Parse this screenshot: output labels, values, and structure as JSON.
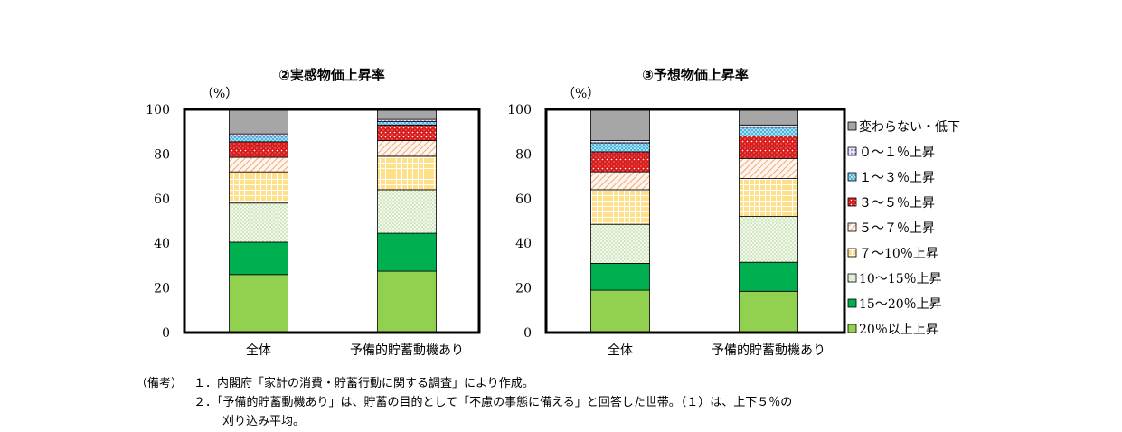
{
  "units_label": "（%）",
  "legend": [
    {
      "label": "変わらない・低下",
      "color": "#a6a6a6",
      "pattern": "solid"
    },
    {
      "label": "０～１％上昇",
      "color": "#9b8fd1",
      "pattern": "dots-purple"
    },
    {
      "label": "１～３％上昇",
      "color": "#8fd8f0",
      "pattern": "hatch-cyan"
    },
    {
      "label": "３～５％上昇",
      "color": "#d92020",
      "pattern": "dots-red"
    },
    {
      "label": "５～７％上昇",
      "color": "#f4a261",
      "pattern": "hatch-orange"
    },
    {
      "label": "７～10％上昇",
      "color": "#ffd966",
      "pattern": "grid-yellow"
    },
    {
      "label": "10～15％上昇",
      "color": "#d9ead3",
      "pattern": "dots-green"
    },
    {
      "label": "15～20％上昇",
      "color": "#00b050",
      "pattern": "solid"
    },
    {
      "label": "20％以上上昇",
      "color": "#92d050",
      "pattern": "solid"
    }
  ],
  "chart_data": [
    {
      "type": "bar",
      "stacked": true,
      "title": "②実感物価上昇率",
      "ylabel": "（%）",
      "ylim": [
        0,
        100
      ],
      "yticks": [
        0,
        20,
        40,
        60,
        80,
        100
      ],
      "categories": [
        "全体",
        "予備的貯蓄動機あり"
      ],
      "series": [
        {
          "name": "20％以上上昇",
          "values": [
            26,
            27.5
          ]
        },
        {
          "name": "15～20％上昇",
          "values": [
            14.5,
            17
          ]
        },
        {
          "name": "10～15％上昇",
          "values": [
            17.5,
            19.5
          ]
        },
        {
          "name": "７～10％上昇",
          "values": [
            14,
            15
          ]
        },
        {
          "name": "５～７％上昇",
          "values": [
            6.5,
            7
          ]
        },
        {
          "name": "３～５％上昇",
          "values": [
            7,
            7
          ]
        },
        {
          "name": "１～３％上昇",
          "values": [
            2.5,
            1.5
          ]
        },
        {
          "name": "０～１％上昇",
          "values": [
            1,
            1
          ]
        },
        {
          "name": "変わらない・低下",
          "values": [
            11,
            4.5
          ]
        }
      ]
    },
    {
      "type": "bar",
      "stacked": true,
      "title": "③予想物価上昇率",
      "ylabel": "（%）",
      "ylim": [
        0,
        100
      ],
      "yticks": [
        0,
        20,
        40,
        60,
        80,
        100
      ],
      "categories": [
        "全体",
        "予備的貯蓄動機あり"
      ],
      "series": [
        {
          "name": "20％以上上昇",
          "values": [
            19,
            18.5
          ]
        },
        {
          "name": "15～20％上昇",
          "values": [
            12,
            13
          ]
        },
        {
          "name": "10～15％上昇",
          "values": [
            17.5,
            20.5
          ]
        },
        {
          "name": "７～10％上昇",
          "values": [
            15.5,
            17
          ]
        },
        {
          "name": "５～７％上昇",
          "values": [
            8,
            9
          ]
        },
        {
          "name": "３～５％上昇",
          "values": [
            9,
            10
          ]
        },
        {
          "name": "１～３％上昇",
          "values": [
            4,
            4
          ]
        },
        {
          "name": "０～１％上昇",
          "values": [
            1,
            1
          ]
        },
        {
          "name": "変わらない・低下",
          "values": [
            14,
            7
          ]
        }
      ]
    }
  ],
  "notes": {
    "label": "（備考）",
    "lines": [
      "１．内閣府「家計の消費・貯蓄行動に関する調査」により作成。",
      "２．「予備的貯蓄動機あり」は、貯蓄の目的として「不慮の事態に備える」と回答した世帯。（１）は、上下５％の",
      "刈り込み平均。"
    ]
  }
}
